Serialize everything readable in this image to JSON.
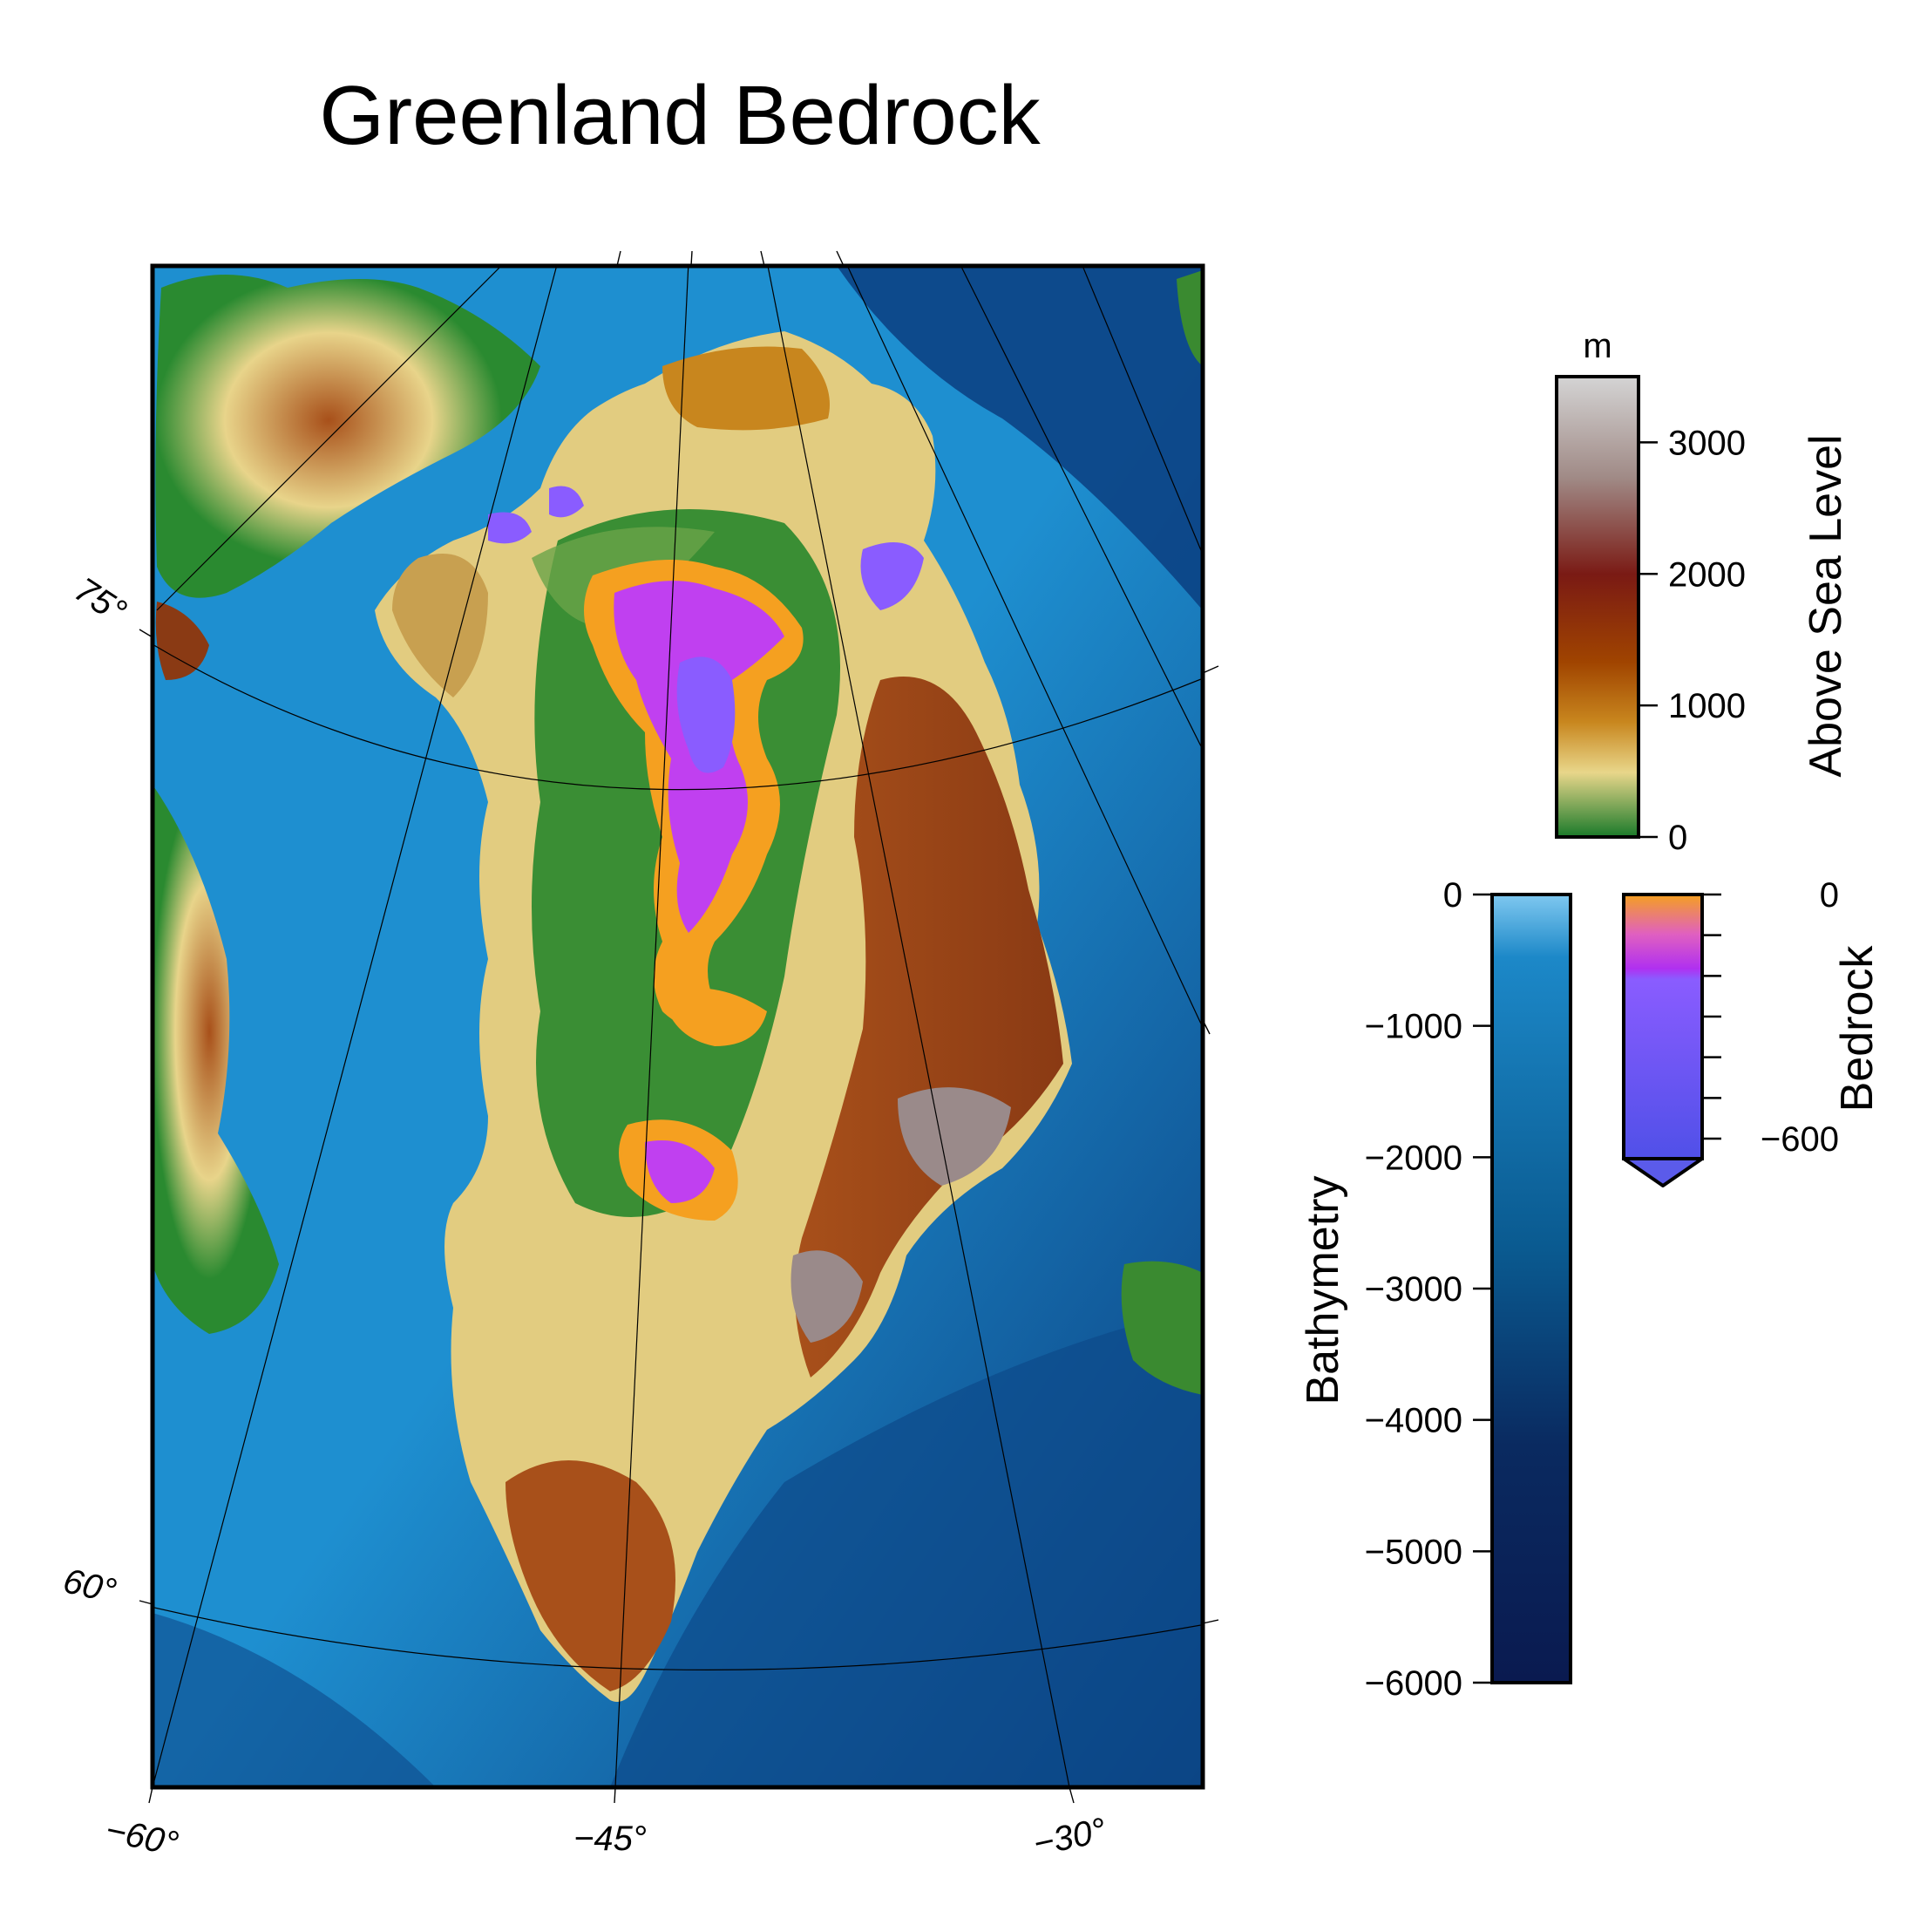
{
  "title": "Greenland Bedrock",
  "map": {
    "lat_labels": [
      {
        "text": "75°",
        "lat": 75
      },
      {
        "text": "60°",
        "lat": 60
      }
    ],
    "lon_labels": [
      {
        "text": "−60°",
        "lon": -60
      },
      {
        "text": "−45°",
        "lon": -45
      },
      {
        "text": "−30°",
        "lon": -30
      }
    ],
    "colors": {
      "ocean_shallow": "#1e8fd0",
      "ocean_deep": "#0a3a7a",
      "lowland": "#2a8a30",
      "midland": "#e8d48a",
      "upland": "#a8501a",
      "highland": "#9a8a8a",
      "below_sea": "#8a5cff",
      "below_sea_edge": "#f5a020",
      "below_sea_mid": "#c040f0"
    }
  },
  "colorbars": {
    "above": {
      "unit": "m",
      "label": "Above Sea Level",
      "ticks": [
        {
          "text": "3000",
          "value": 3000
        },
        {
          "text": "2000",
          "value": 2000
        },
        {
          "text": "1000",
          "value": 1000
        },
        {
          "text": "0",
          "value": 0
        }
      ],
      "range": [
        0,
        3500
      ]
    },
    "bathymetry": {
      "label": "Bathymetry",
      "ticks": [
        {
          "text": "0",
          "value": 0
        },
        {
          "text": "−1000",
          "value": -1000
        },
        {
          "text": "−2000",
          "value": -2000
        },
        {
          "text": "−3000",
          "value": -3000
        },
        {
          "text": "−4000",
          "value": -4000
        },
        {
          "text": "−5000",
          "value": -5000
        },
        {
          "text": "−6000",
          "value": -6000
        }
      ],
      "range": [
        -6000,
        0
      ]
    },
    "bedrock": {
      "label": "Bedrock",
      "ticks": [
        {
          "text": "0",
          "value": 0
        },
        {
          "text": "−600",
          "value": -600
        }
      ],
      "range": [
        -600,
        0
      ]
    }
  }
}
